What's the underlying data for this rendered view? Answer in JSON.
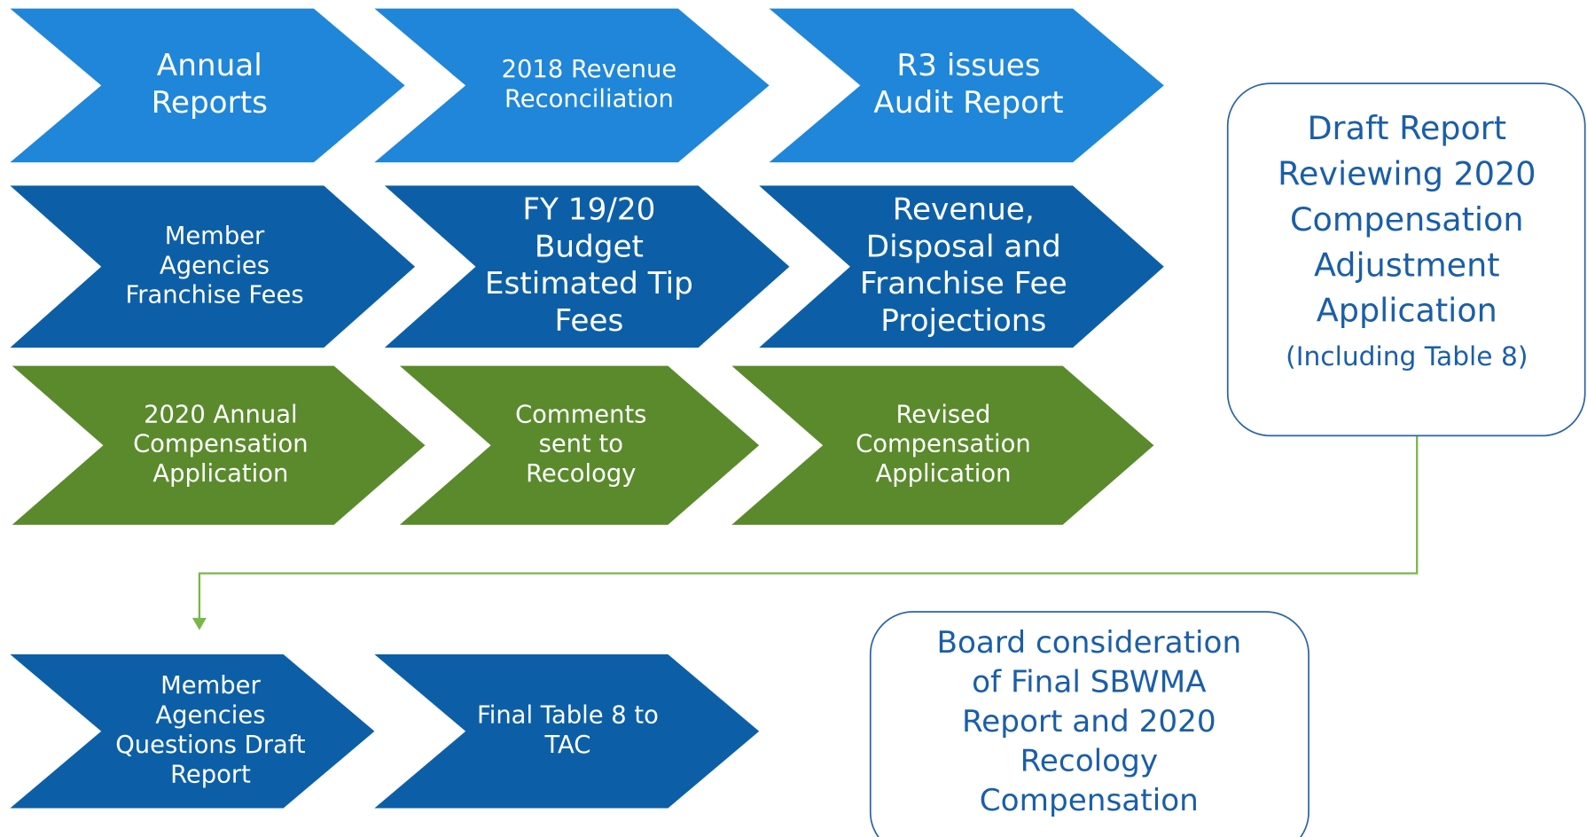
{
  "rows": [
    {
      "steps": [
        {
          "lines": [
            "Annual",
            "Reports"
          ]
        },
        {
          "lines": [
            "2018 Revenue",
            "Reconciliation"
          ]
        },
        {
          "lines": [
            "R3 issues",
            "Audit Report"
          ]
        }
      ]
    },
    {
      "steps": [
        {
          "lines": [
            "Member",
            "Agencies",
            "Franchise Fees"
          ]
        },
        {
          "lines": [
            "FY 19/20",
            "Budget",
            "Estimated Tip",
            "Fees"
          ]
        },
        {
          "lines": [
            "Revenue,",
            "Disposal and",
            "Franchise Fee",
            "Projections"
          ]
        }
      ]
    },
    {
      "steps": [
        {
          "lines": [
            "2020 Annual",
            "Compensation",
            "Application"
          ]
        },
        {
          "lines": [
            "Comments",
            "sent to",
            "Recology"
          ]
        },
        {
          "lines": [
            "Revised",
            "Compensation",
            "Application"
          ]
        }
      ]
    },
    {
      "steps": [
        {
          "lines": [
            "Member",
            "Agencies",
            "Questions Draft",
            "Report"
          ]
        },
        {
          "lines": [
            "Final Table 8  to",
            "TAC"
          ]
        }
      ]
    }
  ],
  "boxes": [
    {
      "lines": [
        "Draft Report",
        "Reviewing 2020",
        "Compensation",
        "Adjustment",
        "Application",
        "(Including Table 8)"
      ]
    },
    {
      "lines": [
        "Board consideration",
        "of Final SBWMA",
        "Report and 2020",
        "Recology",
        "Compensation"
      ]
    }
  ]
}
